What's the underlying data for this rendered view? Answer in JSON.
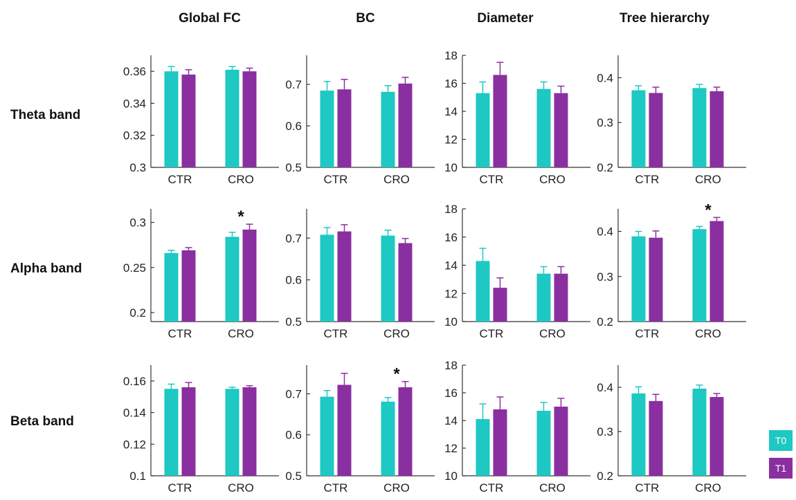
{
  "colors": {
    "T0": "#1ec8c3",
    "T1": "#8a2fa0"
  },
  "columns": [
    "Global FC",
    "BC",
    "Diameter",
    "Tree hierarchy"
  ],
  "rows": [
    "Theta band",
    "Alpha band",
    "Beta band"
  ],
  "legend": [
    {
      "label": "T0",
      "color": "#1ec8c3"
    },
    {
      "label": "T1",
      "color": "#8a2fa0"
    }
  ],
  "chart_data": [
    {
      "type": "bar",
      "row": "Theta band",
      "column": "Global FC",
      "categories": [
        "CTR",
        "CRO"
      ],
      "ylim": [
        0.3,
        0.37
      ],
      "yticks": [
        "0.3",
        "0.32",
        "0.34",
        "0.36"
      ],
      "series": [
        {
          "name": "T0",
          "values": [
            0.36,
            0.361
          ],
          "errors": [
            0.003,
            0.002
          ]
        },
        {
          "name": "T1",
          "values": [
            0.358,
            0.36
          ],
          "errors": [
            0.003,
            0.002
          ]
        }
      ],
      "significance": []
    },
    {
      "type": "bar",
      "row": "Theta band",
      "column": "BC",
      "categories": [
        "CTR",
        "CRO"
      ],
      "ylim": [
        0.5,
        0.77
      ],
      "yticks": [
        "0.5",
        "0.6",
        "0.7"
      ],
      "series": [
        {
          "name": "T0",
          "values": [
            0.685,
            0.682
          ],
          "errors": [
            0.022,
            0.015
          ]
        },
        {
          "name": "T1",
          "values": [
            0.688,
            0.702
          ],
          "errors": [
            0.024,
            0.015
          ]
        }
      ],
      "significance": []
    },
    {
      "type": "bar",
      "row": "Theta band",
      "column": "Diameter",
      "categories": [
        "CTR",
        "CRO"
      ],
      "ylim": [
        10,
        18
      ],
      "yticks": [
        "10",
        "12",
        "14",
        "16",
        "18"
      ],
      "series": [
        {
          "name": "T0",
          "values": [
            15.3,
            15.6
          ],
          "errors": [
            0.8,
            0.5
          ]
        },
        {
          "name": "T1",
          "values": [
            16.6,
            15.3
          ],
          "errors": [
            0.9,
            0.5
          ]
        }
      ],
      "significance": []
    },
    {
      "type": "bar",
      "row": "Theta band",
      "column": "Tree hierarchy",
      "categories": [
        "CTR",
        "CRO"
      ],
      "ylim": [
        0.2,
        0.45
      ],
      "yticks": [
        "0.2",
        "0.3",
        "0.4"
      ],
      "series": [
        {
          "name": "T0",
          "values": [
            0.372,
            0.377
          ],
          "errors": [
            0.01,
            0.008
          ]
        },
        {
          "name": "T1",
          "values": [
            0.366,
            0.37
          ],
          "errors": [
            0.013,
            0.009
          ]
        }
      ],
      "significance": []
    },
    {
      "type": "bar",
      "row": "Alpha band",
      "column": "Global FC",
      "categories": [
        "CTR",
        "CRO"
      ],
      "ylim": [
        0.19,
        0.315
      ],
      "yticks": [
        "0.2",
        "0.25",
        "0.3"
      ],
      "series": [
        {
          "name": "T0",
          "values": [
            0.266,
            0.284
          ],
          "errors": [
            0.003,
            0.005
          ]
        },
        {
          "name": "T1",
          "values": [
            0.269,
            0.292
          ],
          "errors": [
            0.003,
            0.006
          ]
        }
      ],
      "significance": [
        {
          "category": "CRO",
          "label": "*"
        }
      ]
    },
    {
      "type": "bar",
      "row": "Alpha band",
      "column": "BC",
      "categories": [
        "CTR",
        "CRO"
      ],
      "ylim": [
        0.5,
        0.77
      ],
      "yticks": [
        "0.5",
        "0.6",
        "0.7"
      ],
      "series": [
        {
          "name": "T0",
          "values": [
            0.708,
            0.706
          ],
          "errors": [
            0.017,
            0.013
          ]
        },
        {
          "name": "T1",
          "values": [
            0.716,
            0.688
          ],
          "errors": [
            0.016,
            0.011
          ]
        }
      ],
      "significance": []
    },
    {
      "type": "bar",
      "row": "Alpha band",
      "column": "Diameter",
      "categories": [
        "CTR",
        "CRO"
      ],
      "ylim": [
        10,
        18
      ],
      "yticks": [
        "10",
        "12",
        "14",
        "16",
        "18"
      ],
      "series": [
        {
          "name": "T0",
          "values": [
            14.3,
            13.4
          ],
          "errors": [
            0.9,
            0.5
          ]
        },
        {
          "name": "T1",
          "values": [
            12.4,
            13.4
          ],
          "errors": [
            0.7,
            0.5
          ]
        }
      ],
      "significance": []
    },
    {
      "type": "bar",
      "row": "Alpha band",
      "column": "Tree hierarchy",
      "categories": [
        "CTR",
        "CRO"
      ],
      "ylim": [
        0.2,
        0.45
      ],
      "yticks": [
        "0.2",
        "0.3",
        "0.4"
      ],
      "series": [
        {
          "name": "T0",
          "values": [
            0.389,
            0.405
          ],
          "errors": [
            0.011,
            0.006
          ]
        },
        {
          "name": "T1",
          "values": [
            0.386,
            0.423
          ],
          "errors": [
            0.015,
            0.008
          ]
        }
      ],
      "significance": [
        {
          "category": "CRO",
          "label": "*"
        }
      ]
    },
    {
      "type": "bar",
      "row": "Beta band",
      "column": "Global FC",
      "categories": [
        "CTR",
        "CRO"
      ],
      "ylim": [
        0.1,
        0.17
      ],
      "yticks": [
        "0.1",
        "0.12",
        "0.14",
        "0.16"
      ],
      "series": [
        {
          "name": "T0",
          "values": [
            0.155,
            0.155
          ],
          "errors": [
            0.003,
            0.001
          ]
        },
        {
          "name": "T1",
          "values": [
            0.156,
            0.156
          ],
          "errors": [
            0.003,
            0.001
          ]
        }
      ],
      "significance": []
    },
    {
      "type": "bar",
      "row": "Beta band",
      "column": "BC",
      "categories": [
        "CTR",
        "CRO"
      ],
      "ylim": [
        0.5,
        0.77
      ],
      "yticks": [
        "0.5",
        "0.6",
        "0.7"
      ],
      "series": [
        {
          "name": "T0",
          "values": [
            0.693,
            0.681
          ],
          "errors": [
            0.015,
            0.01
          ]
        },
        {
          "name": "T1",
          "values": [
            0.722,
            0.716
          ],
          "errors": [
            0.028,
            0.014
          ]
        }
      ],
      "significance": [
        {
          "category": "CRO",
          "label": "*"
        }
      ]
    },
    {
      "type": "bar",
      "row": "Beta band",
      "column": "Diameter",
      "categories": [
        "CTR",
        "CRO"
      ],
      "ylim": [
        10,
        18
      ],
      "yticks": [
        "10",
        "12",
        "14",
        "16",
        "18"
      ],
      "series": [
        {
          "name": "T0",
          "values": [
            14.1,
            14.7
          ],
          "errors": [
            1.1,
            0.6
          ]
        },
        {
          "name": "T1",
          "values": [
            14.8,
            15.0
          ],
          "errors": [
            0.9,
            0.6
          ]
        }
      ],
      "significance": []
    },
    {
      "type": "bar",
      "row": "Beta band",
      "column": "Tree hierarchy",
      "categories": [
        "CTR",
        "CRO"
      ],
      "ylim": [
        0.2,
        0.45
      ],
      "yticks": [
        "0.2",
        "0.3",
        "0.4"
      ],
      "series": [
        {
          "name": "T0",
          "values": [
            0.386,
            0.397
          ],
          "errors": [
            0.015,
            0.008
          ]
        },
        {
          "name": "T1",
          "values": [
            0.369,
            0.378
          ],
          "errors": [
            0.015,
            0.008
          ]
        }
      ],
      "significance": []
    }
  ]
}
